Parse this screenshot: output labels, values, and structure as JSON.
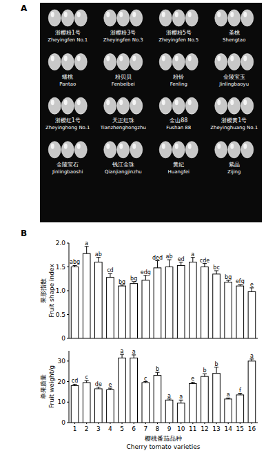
{
  "panel_labels": [
    "A",
    "B"
  ],
  "photo_grid": [
    {
      "zh": "浙樱粉1号",
      "en": "Zheyingfen No.1"
    },
    {
      "zh": "浙樱粉3号",
      "en": "Zheyingfen No.3"
    },
    {
      "zh": "浙樱粉5号",
      "en": "Zheyingfen No.5"
    },
    {
      "zh": "圣桃",
      "en": "Shengtao"
    },
    {
      "zh": "蟠桃",
      "en": "Pantao"
    },
    {
      "zh": "粉贝贝",
      "en": "Fenbeibei"
    },
    {
      "zh": "粉铃",
      "en": "Fenling"
    },
    {
      "zh": "金陵宝玉",
      "en": "Jinlingbaoyu"
    },
    {
      "zh": "浙樱红1号",
      "en": "Zheyinghong No.1"
    },
    {
      "zh": "天正红珠",
      "en": "Tianzhenghongzhu"
    },
    {
      "zh": "金山88",
      "en": "Fushan 88"
    },
    {
      "zh": "浙樱黄1号",
      "en": "Zheyinghuang No.1"
    },
    {
      "zh": "金陵宝石",
      "en": "Jinlingbaoshi"
    },
    {
      "zh": "钱江金珠",
      "en": "Qianjiangjinzhu"
    },
    {
      "zh": "黄妃",
      "en": "Huangfei"
    },
    {
      "zh": "紫晶",
      "en": "Zijing"
    }
  ],
  "chart_data": [
    {
      "type": "bar",
      "y_label_zh": "果形指数",
      "y_label": "Fruit shape index",
      "categories": [
        null,
        null,
        null,
        null,
        null,
        null,
        null,
        null,
        null,
        null,
        null,
        null,
        null,
        null,
        null,
        null
      ],
      "values": [
        1.5,
        1.78,
        1.6,
        1.28,
        1.1,
        1.15,
        1.22,
        1.48,
        1.5,
        1.53,
        1.6,
        1.5,
        1.35,
        1.18,
        1.1,
        0.98
      ],
      "errors": [
        0.03,
        0.15,
        0.1,
        0.08,
        0.02,
        0.04,
        0.1,
        0.15,
        0.15,
        0.07,
        0.1,
        0.07,
        0.07,
        0.04,
        0.03,
        0.08
      ],
      "significance": [
        "abg",
        "a",
        "ab",
        "cd",
        "bg",
        "bg",
        "edg",
        "ded",
        "ab",
        "ed",
        "a",
        "cde",
        "bc",
        "bg",
        "efg",
        "e"
      ],
      "color": "#ffffff",
      "ylim": [
        0,
        2
      ],
      "yticks": [
        0,
        0.5,
        {
          "value": 1,
          "label": "1.0"
        },
        1.5,
        {
          "value": 2,
          "label": "2.0"
        }
      ]
    },
    {
      "type": "bar",
      "y_label_zh": "单果质量",
      "y_label": "Fruit weight/g",
      "x_label_zh": "樱桃番茄品种",
      "x_label": "Cherry tomato varieties",
      "categories": [
        "1",
        "2",
        "3",
        "4",
        "5",
        "6",
        "7",
        "8",
        "9",
        "10",
        "11",
        "12",
        "13",
        "14",
        "15",
        "16"
      ],
      "values": [
        18,
        19.5,
        16.5,
        16,
        31.5,
        31.5,
        19.5,
        23,
        11,
        9.5,
        19,
        22.5,
        24,
        11.5,
        13.5,
        30
      ],
      "errors": [
        0.7,
        1,
        0.8,
        0.8,
        1.8,
        1.5,
        0.5,
        1.5,
        0.5,
        1.5,
        0.7,
        1.3,
        3,
        0.5,
        0.8,
        1
      ],
      "significance": [
        "cd",
        "c",
        "de",
        "e",
        "a",
        "a",
        "c",
        "b",
        "a",
        "a",
        "e",
        "b",
        "b",
        "a",
        "f",
        "a"
      ],
      "color": "#ffffff",
      "ylim": [
        0,
        35
      ],
      "yticks": [
        0,
        10,
        20,
        30
      ]
    }
  ]
}
